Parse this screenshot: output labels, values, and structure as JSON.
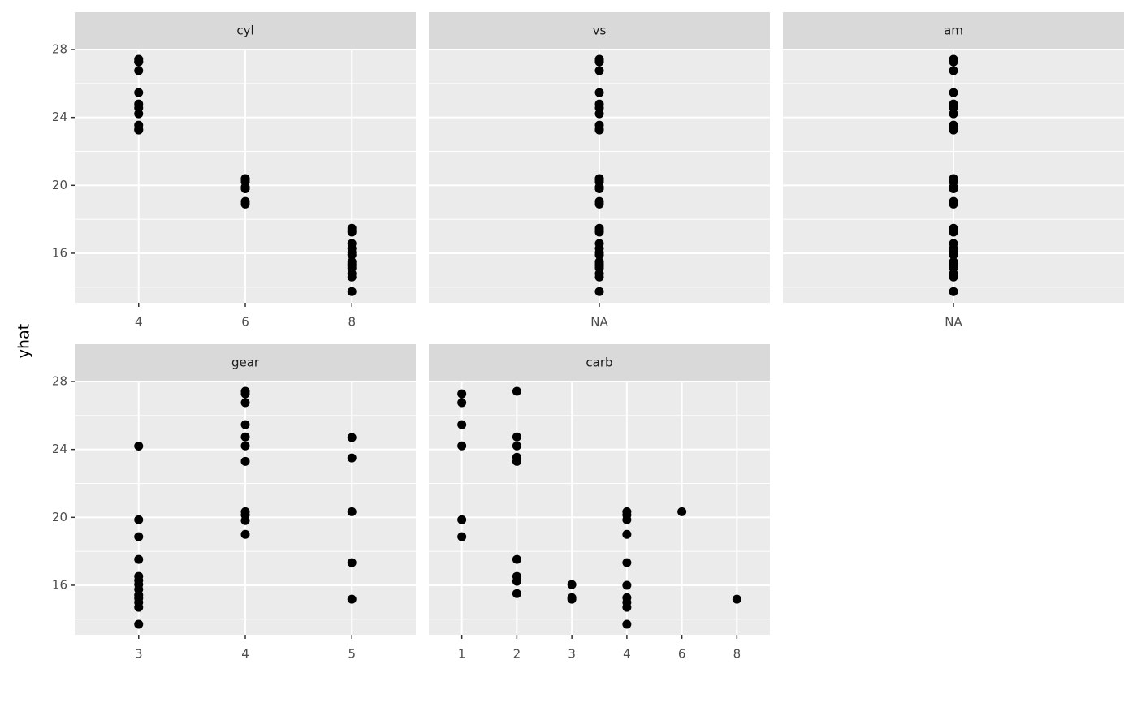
{
  "ylabel": "yhat",
  "chart_data": [
    {
      "type": "scatter",
      "title": "cyl",
      "categories": [
        "4",
        "6",
        "8"
      ],
      "x": [
        "4",
        "4",
        "4",
        "4",
        "4",
        "4",
        "4",
        "4",
        "4",
        "4",
        "4",
        "6",
        "6",
        "6",
        "6",
        "6",
        "6",
        "6",
        "8",
        "8",
        "8",
        "8",
        "8",
        "8",
        "8",
        "8",
        "8",
        "8",
        "8",
        "8",
        "8",
        "8"
      ],
      "values": [
        27.43,
        27.3,
        27.28,
        26.76,
        25.46,
        24.79,
        24.56,
        24.22,
        23.55,
        23.3,
        23.26,
        20.4,
        20.33,
        20.2,
        19.9,
        19.8,
        19.05,
        18.9,
        17.47,
        17.33,
        17.24,
        16.57,
        16.28,
        16.04,
        15.9,
        15.5,
        15.37,
        15.27,
        15.13,
        14.8,
        14.6,
        13.74
      ],
      "ylim": [
        13.08,
        28.05
      ],
      "yticks": [
        16,
        20,
        24,
        28
      ],
      "color": "#000000",
      "grid": true
    },
    {
      "type": "scatter",
      "title": "vs",
      "categories": [
        "NA"
      ],
      "x": [
        "NA",
        "NA",
        "NA",
        "NA",
        "NA",
        "NA",
        "NA",
        "NA",
        "NA",
        "NA",
        "NA",
        "NA",
        "NA",
        "NA",
        "NA",
        "NA",
        "NA",
        "NA",
        "NA",
        "NA",
        "NA",
        "NA",
        "NA",
        "NA",
        "NA",
        "NA",
        "NA",
        "NA",
        "NA",
        "NA",
        "NA",
        "NA"
      ],
      "values": [
        27.43,
        27.3,
        27.28,
        26.76,
        25.46,
        24.79,
        24.56,
        24.22,
        23.55,
        23.3,
        23.26,
        20.4,
        20.33,
        20.2,
        19.9,
        19.8,
        19.05,
        18.9,
        17.47,
        17.33,
        17.24,
        16.57,
        16.28,
        16.04,
        15.9,
        15.5,
        15.37,
        15.27,
        15.13,
        14.8,
        14.6,
        13.74
      ],
      "ylim": [
        13.08,
        28.05
      ],
      "yticks": [
        16,
        20,
        24,
        28
      ],
      "color": "#000000",
      "grid": true
    },
    {
      "type": "scatter",
      "title": "am",
      "categories": [
        "NA"
      ],
      "x": [
        "NA",
        "NA",
        "NA",
        "NA",
        "NA",
        "NA",
        "NA",
        "NA",
        "NA",
        "NA",
        "NA",
        "NA",
        "NA",
        "NA",
        "NA",
        "NA",
        "NA",
        "NA",
        "NA",
        "NA",
        "NA",
        "NA",
        "NA",
        "NA",
        "NA",
        "NA",
        "NA",
        "NA",
        "NA",
        "NA",
        "NA",
        "NA"
      ],
      "values": [
        27.43,
        27.3,
        27.28,
        26.76,
        25.46,
        24.79,
        24.56,
        24.22,
        23.55,
        23.3,
        23.26,
        20.4,
        20.33,
        20.2,
        19.9,
        19.8,
        19.05,
        18.9,
        17.47,
        17.33,
        17.24,
        16.57,
        16.28,
        16.04,
        15.9,
        15.5,
        15.37,
        15.27,
        15.13,
        14.8,
        14.6,
        13.74
      ],
      "ylim": [
        13.08,
        28.05
      ],
      "yticks": [
        16,
        20,
        24,
        28
      ],
      "color": "#000000",
      "grid": true
    },
    {
      "type": "scatter",
      "title": "gear",
      "categories": [
        "3",
        "4",
        "5"
      ],
      "x": [
        "3",
        "3",
        "3",
        "3",
        "3",
        "3",
        "3",
        "3",
        "3",
        "3",
        "3",
        "3",
        "3",
        "4",
        "4",
        "4",
        "4",
        "4",
        "4",
        "4",
        "4",
        "4",
        "4",
        "4",
        "5",
        "5",
        "5",
        "5",
        "5"
      ],
      "values": [
        24.2,
        19.86,
        18.86,
        17.52,
        16.52,
        16.28,
        16.04,
        15.75,
        15.42,
        15.23,
        14.99,
        14.7,
        13.7,
        27.43,
        27.28,
        26.76,
        25.46,
        24.74,
        24.21,
        23.3,
        20.33,
        20.14,
        19.81,
        19.0,
        24.7,
        23.5,
        20.33,
        17.33,
        15.18
      ],
      "ylim": [
        13.08,
        28.05
      ],
      "yticks": [
        16,
        20,
        24,
        28
      ],
      "color": "#000000",
      "grid": true
    },
    {
      "type": "scatter",
      "title": "carb",
      "categories": [
        "1",
        "2",
        "3",
        "4",
        "6",
        "8"
      ],
      "x": [
        "1",
        "1",
        "1",
        "1",
        "1",
        "1",
        "2",
        "2",
        "2",
        "2",
        "2",
        "2",
        "2",
        "2",
        "2",
        "3",
        "3",
        "3",
        "4",
        "4",
        "4",
        "4",
        "4",
        "4",
        "4",
        "4",
        "4",
        "4",
        "6",
        "8"
      ],
      "values": [
        27.28,
        26.76,
        25.46,
        24.21,
        19.86,
        18.86,
        27.43,
        24.74,
        24.21,
        23.54,
        23.3,
        17.52,
        16.52,
        16.23,
        15.51,
        16.04,
        15.27,
        15.18,
        20.33,
        20.14,
        19.86,
        19.0,
        17.33,
        16.0,
        15.27,
        14.99,
        14.7,
        13.7,
        20.33,
        15.18
      ],
      "ylim": [
        13.08,
        28.05
      ],
      "yticks": [
        16,
        20,
        24,
        28
      ],
      "color": "#000000",
      "grid": true
    }
  ]
}
